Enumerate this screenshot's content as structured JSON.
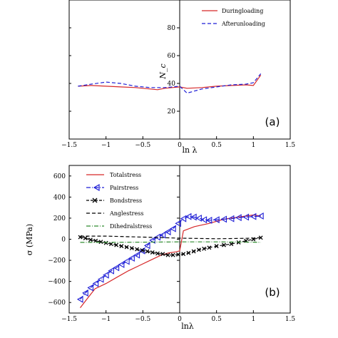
{
  "chart_data": [
    {
      "type": "line",
      "panel_label": "(a)",
      "xlabel": "ln λ",
      "ylabel": "N_c",
      "xlim": [
        -1.5,
        1.5
      ],
      "ylim": [
        0,
        100
      ],
      "xticks": [
        -1.5,
        -1,
        -0.5,
        0,
        0.5,
        1,
        1.5
      ],
      "yticks": [
        20,
        40,
        60,
        80
      ],
      "xtick_labels": [
        "−1.5",
        "−1",
        "−0.5",
        "0",
        "0.5",
        "1",
        "1.5"
      ],
      "ytick_labels": [
        "20",
        "40",
        "60",
        "80"
      ],
      "grid": false,
      "legend": "top-right",
      "series": [
        {
          "name": "Duringloading",
          "color": "#d62728",
          "dash": "solid",
          "x": [
            -1.38,
            -1.2,
            -1.0,
            -0.8,
            -0.6,
            -0.4,
            -0.3,
            -0.2,
            -0.1,
            0.0,
            0.1,
            0.3,
            0.5,
            0.7,
            0.9,
            1.0,
            1.1
          ],
          "y": [
            38,
            38.5,
            38,
            37.5,
            37,
            36,
            35.5,
            36.5,
            37,
            37.5,
            36.5,
            37,
            38,
            38.5,
            39,
            38.5,
            46
          ]
        },
        {
          "name": "Afterunloading",
          "color": "#1f1fd6",
          "dash": "dashed",
          "x": [
            -1.38,
            -1.2,
            -1.0,
            -0.8,
            -0.6,
            -0.4,
            -0.2,
            -0.1,
            0.0,
            0.1,
            0.3,
            0.5,
            0.7,
            0.9,
            1.0,
            1.1
          ],
          "y": [
            38,
            39.5,
            41,
            40,
            38,
            37,
            37,
            37.5,
            38,
            33,
            36,
            37.5,
            39,
            39.5,
            40.5,
            47
          ]
        }
      ]
    },
    {
      "type": "line",
      "panel_label": "(b)",
      "xlabel": "lnλ",
      "ylabel": "σ (MPa)",
      "xlim": [
        -1.5,
        1.5
      ],
      "ylim": [
        -700,
        700
      ],
      "xticks": [
        -1.5,
        -1,
        -0.5,
        0,
        0.5,
        1,
        1.5
      ],
      "yticks": [
        -600,
        -400,
        -200,
        0,
        200,
        400,
        600
      ],
      "xtick_labels": [
        "−1.5",
        "−1",
        "−0.5",
        "0",
        "0.5",
        "1",
        "1.5"
      ],
      "ytick_labels": [
        "−600",
        "−400",
        "−200",
        "0",
        "200",
        "400",
        "600"
      ],
      "grid": false,
      "legend": "top-left",
      "series": [
        {
          "name": "Totalstress",
          "color": "#d62728",
          "dash": "solid",
          "marker": "none",
          "x": [
            -1.35,
            -1.25,
            -1.15,
            -1.0,
            -0.85,
            -0.7,
            -0.55,
            -0.4,
            -0.25,
            -0.15,
            -0.05,
            0.0,
            0.05,
            0.2,
            0.4,
            0.6,
            0.8,
            1.0,
            1.1
          ],
          "y": [
            -650,
            -560,
            -470,
            -420,
            -360,
            -300,
            -250,
            -200,
            -150,
            -130,
            -120,
            -110,
            80,
            120,
            150,
            190,
            210,
            230,
            220
          ]
        },
        {
          "name": "Pairstress",
          "color": "#1f1fd6",
          "dash": "dashdot",
          "marker": "triangle-left",
          "x": [
            -1.35,
            -1.28,
            -1.21,
            -1.14,
            -1.07,
            -1.0,
            -0.93,
            -0.86,
            -0.79,
            -0.72,
            -0.65,
            -0.58,
            -0.51,
            -0.44,
            -0.37,
            -0.3,
            -0.23,
            -0.16,
            -0.09,
            -0.02,
            0.05,
            0.12,
            0.19,
            0.26,
            0.33,
            0.4,
            0.5,
            0.6,
            0.7,
            0.8,
            0.9,
            1.0,
            1.1
          ],
          "y": [
            -570,
            -510,
            -460,
            -420,
            -380,
            -340,
            -300,
            -270,
            -240,
            -210,
            -180,
            -150,
            -110,
            -60,
            -10,
            20,
            40,
            70,
            100,
            150,
            195,
            215,
            210,
            200,
            185,
            180,
            185,
            190,
            195,
            205,
            210,
            215,
            220
          ]
        },
        {
          "name": "Bondstress",
          "color": "#000000",
          "dash": "dashed",
          "marker": "x",
          "x": [
            -1.35,
            -1.28,
            -1.21,
            -1.14,
            -1.07,
            -1.0,
            -0.93,
            -0.86,
            -0.79,
            -0.72,
            -0.65,
            -0.58,
            -0.51,
            -0.44,
            -0.37,
            -0.3,
            -0.23,
            -0.16,
            -0.09,
            -0.02,
            0.05,
            0.12,
            0.19,
            0.26,
            0.33,
            0.4,
            0.5,
            0.6,
            0.7,
            0.8,
            0.9,
            1.0,
            1.1
          ],
          "y": [
            20,
            10,
            -5,
            -15,
            -25,
            -35,
            -45,
            -55,
            -65,
            -75,
            -85,
            -95,
            -105,
            -115,
            -125,
            -135,
            -140,
            -150,
            -150,
            -145,
            -140,
            -130,
            -115,
            -100,
            -90,
            -80,
            -65,
            -55,
            -45,
            -30,
            -15,
            0,
            15
          ]
        },
        {
          "name": "Anglestress",
          "color": "#000000",
          "dash": "dashed",
          "marker": "none",
          "x": [
            -1.35,
            -1.0,
            -0.5,
            0.0,
            0.5,
            1.0,
            1.1
          ],
          "y": [
            30,
            30,
            20,
            10,
            5,
            10,
            15
          ]
        },
        {
          "name": "Dihedralstress",
          "color": "#2e8b2e",
          "dash": "dashdot",
          "marker": "none",
          "x": [
            -1.35,
            -1.0,
            -0.5,
            0.0,
            0.5,
            1.0,
            1.1
          ],
          "y": [
            -30,
            -30,
            -28,
            -25,
            -25,
            -28,
            -30
          ]
        }
      ]
    }
  ]
}
